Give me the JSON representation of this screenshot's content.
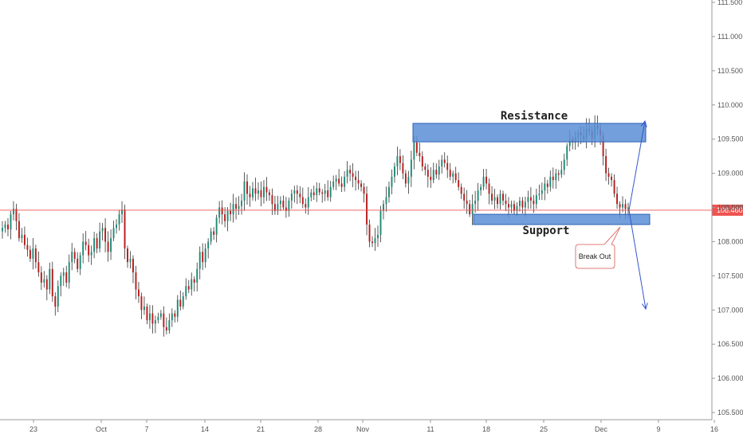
{
  "chart_data": {
    "type": "candlestick",
    "title": "",
    "xlabel": "",
    "ylabel": "",
    "ylim": [
      105.38,
      111.58
    ],
    "y_ticks": [
      "105.500",
      "106.000",
      "106.500",
      "107.000",
      "107.500",
      "108.000",
      "108.500",
      "109.000",
      "109.500",
      "110.000",
      "110.500",
      "111.000",
      "111.500"
    ],
    "y_tick_values": [
      105.5,
      106.0,
      106.5,
      107.0,
      107.5,
      108.0,
      108.5,
      109.0,
      109.5,
      110.0,
      110.5,
      111.0,
      111.5
    ],
    "x_ticks": [
      "23",
      "Oct",
      "7",
      "14",
      "21",
      "28",
      "Nov",
      "11",
      "18",
      "25",
      "Dec",
      "9",
      "16"
    ],
    "current_price": {
      "label": "108.460",
      "value": 108.46,
      "color": "#ef5350"
    },
    "colors": {
      "up": "#1f8a76",
      "down": "#b71c1c",
      "zone_fill": "#5b8fd6",
      "zone_stroke": "#2d5fb4",
      "arrow": "#3355cc"
    },
    "zones": [
      {
        "name": "resistance",
        "label": "Resistance",
        "top": 109.73,
        "bottom": 109.46
      },
      {
        "name": "support",
        "label": "Support",
        "top": 108.4,
        "bottom": 108.25
      }
    ],
    "callout": {
      "label": "Break Out"
    },
    "candles_close": [
      108.2,
      108.25,
      108.18,
      108.4,
      108.48,
      108.3,
      108.05,
      108.1,
      107.95,
      107.88,
      107.75,
      107.9,
      107.7,
      107.55,
      107.4,
      107.45,
      107.3,
      107.6,
      107.2,
      107.05,
      107.35,
      107.5,
      107.55,
      107.4,
      107.7,
      107.85,
      107.75,
      107.6,
      107.8,
      108.0,
      107.95,
      107.8,
      107.85,
      108.05,
      107.9,
      108.15,
      108.2,
      108.0,
      107.85,
      108.05,
      108.2,
      108.25,
      108.4,
      108.47,
      107.9,
      107.7,
      107.75,
      107.55,
      107.3,
      107.2,
      107.0,
      107.05,
      106.85,
      106.95,
      106.8,
      106.85,
      106.9,
      106.95,
      106.75,
      106.7,
      106.85,
      106.95,
      106.9,
      107.15,
      107.05,
      107.2,
      107.35,
      107.3,
      107.45,
      107.4,
      107.6,
      107.85,
      107.7,
      107.9,
      108.0,
      108.15,
      108.1,
      108.35,
      108.5,
      108.4,
      108.3,
      108.45,
      108.4,
      108.55,
      108.48,
      108.52,
      108.6,
      108.88,
      108.7,
      108.65,
      108.78,
      108.7,
      108.75,
      108.65,
      108.8,
      108.72,
      108.68,
      108.55,
      108.45,
      108.55,
      108.6,
      108.5,
      108.45,
      108.6,
      108.7,
      108.75,
      108.7,
      108.65,
      108.55,
      108.5,
      108.65,
      108.72,
      108.68,
      108.78,
      108.72,
      108.7,
      108.75,
      108.65,
      108.8,
      108.88,
      108.92,
      108.85,
      108.8,
      108.95,
      109.05,
      109.0,
      108.95,
      108.9,
      108.85,
      108.8,
      108.7,
      108.25,
      108.0,
      107.98,
      108.05,
      108.1,
      108.45,
      108.55,
      108.65,
      108.8,
      108.95,
      109.1,
      109.25,
      109.15,
      109.0,
      108.85,
      108.95,
      109.2,
      109.45,
      109.3,
      109.25,
      109.1,
      109.05,
      108.95,
      108.9,
      109.05,
      108.98,
      109.1,
      109.2,
      109.15,
      109.05,
      108.95,
      109.0,
      108.9,
      108.8,
      108.7,
      108.6,
      108.55,
      108.4,
      108.55,
      108.6,
      108.75,
      108.8,
      108.95,
      108.85,
      108.7,
      108.6,
      108.65,
      108.55,
      108.7,
      108.6,
      108.55,
      108.5,
      108.55,
      108.45,
      108.52,
      108.6,
      108.5,
      108.58,
      108.65,
      108.6,
      108.55,
      108.68,
      108.7,
      108.75,
      108.85,
      108.8,
      108.95,
      108.9,
      109.0,
      108.98,
      109.05,
      109.2,
      109.4,
      109.5,
      109.45,
      109.52,
      109.6,
      109.55,
      109.5,
      109.65,
      109.62,
      109.5,
      109.7,
      109.65,
      109.55,
      109.25,
      109.0,
      108.95,
      108.9,
      108.7,
      108.55,
      108.5,
      108.55,
      108.48,
      108.5
    ]
  }
}
